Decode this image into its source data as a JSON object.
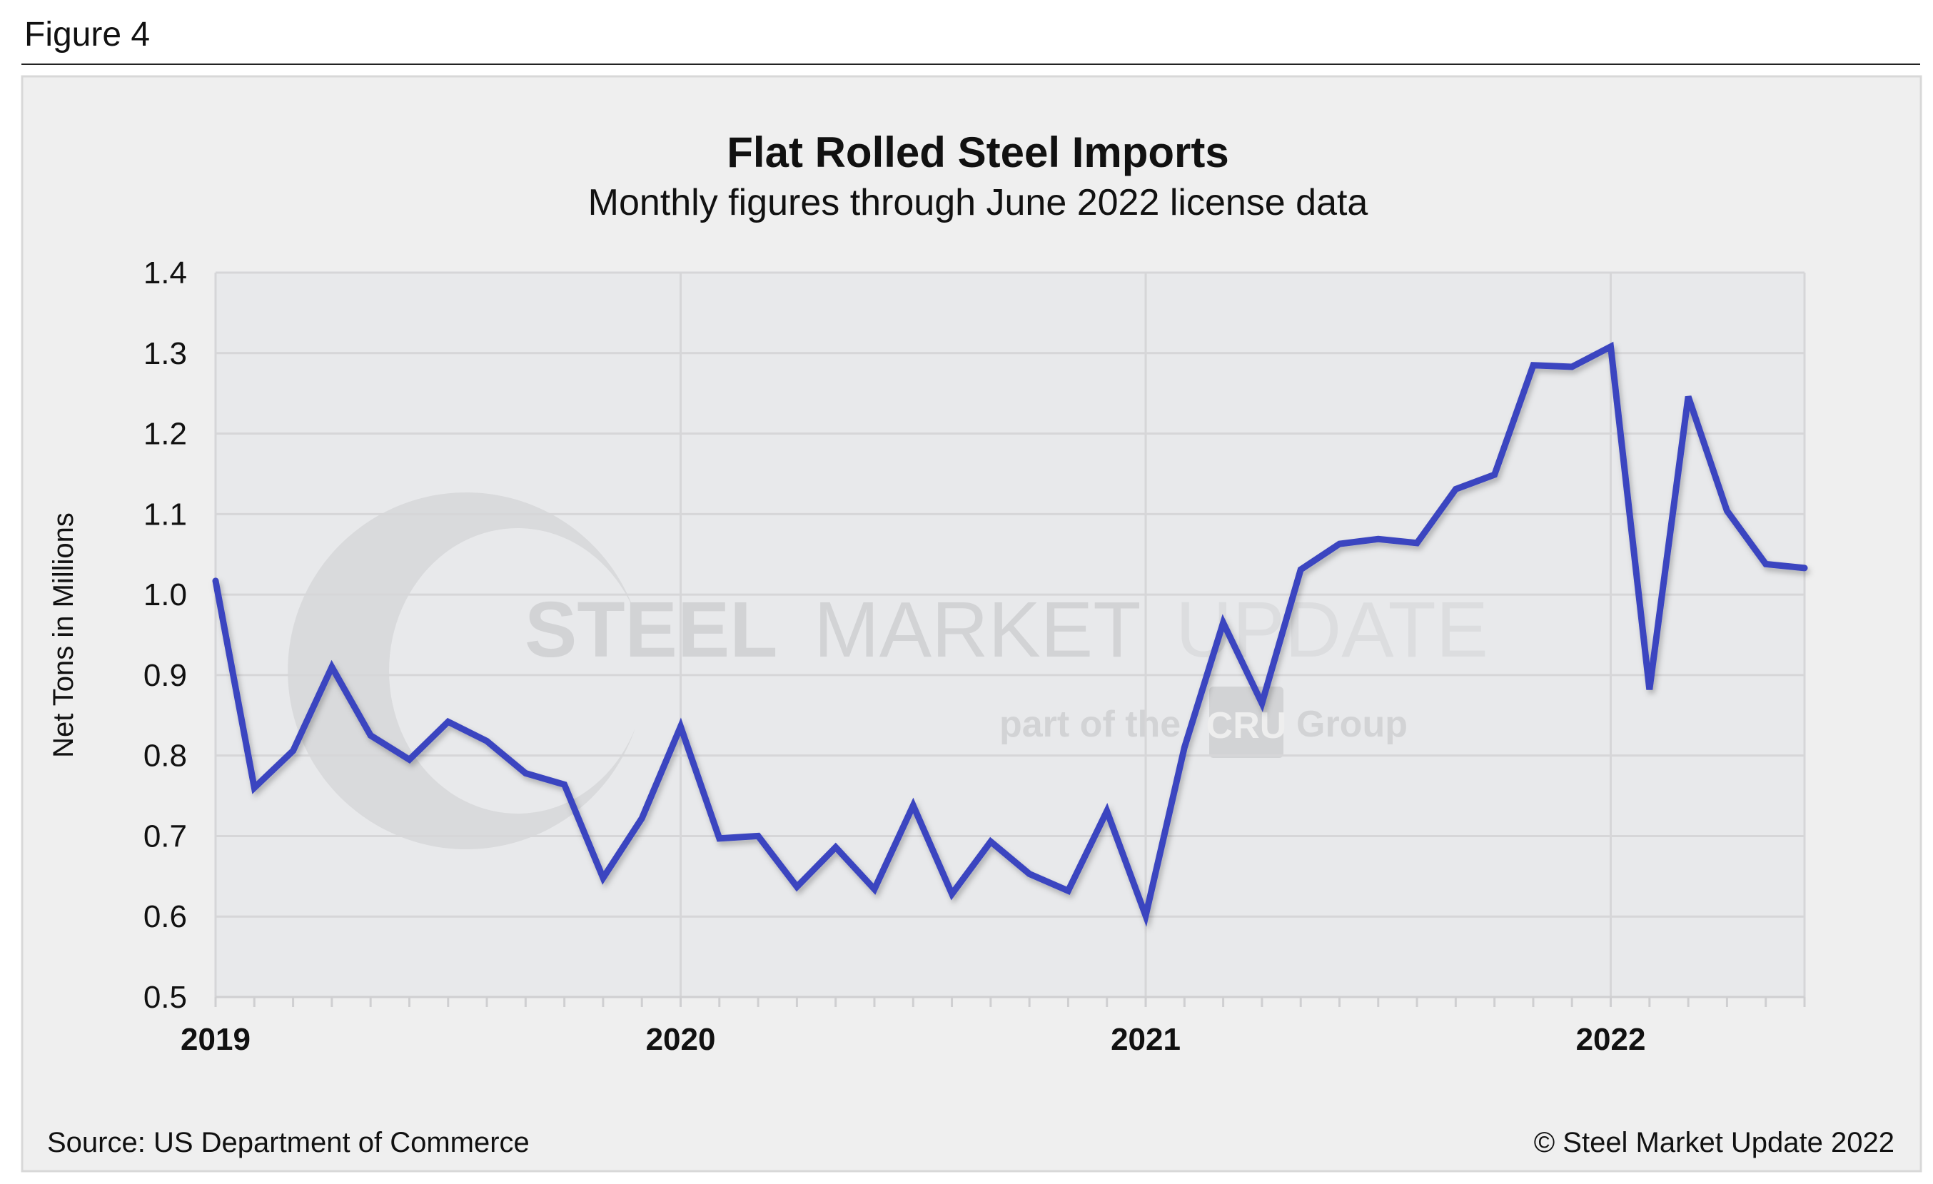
{
  "figure_label": "Figure 4",
  "source": "Source: US Department of Commerce",
  "copyright": "© Steel Market Update 2022",
  "watermark": {
    "main_bold": "STEEL",
    "main_regular": "MARKET",
    "main_light": "UPDATE",
    "sub_prefix": "part of the",
    "sub_badge": "CRU",
    "sub_suffix": "Group"
  },
  "colors": {
    "line": "#3b45c0",
    "plot_bg": "#e8e9eb",
    "panel_bg": "#efefef",
    "grid": "#d6d6d8"
  },
  "chart_data": {
    "type": "line",
    "title": "Flat Rolled Steel Imports",
    "subtitle": "Monthly figures through June 2022 license data",
    "xlabel": "",
    "ylabel": "Net Tons in Millions",
    "ylim": [
      0.5,
      1.4
    ],
    "yticks": [
      "0.5",
      "0.6",
      "0.7",
      "0.8",
      "0.9",
      "1.0",
      "1.1",
      "1.2",
      "1.3",
      "1.4"
    ],
    "xticks": [
      "2019",
      "2020",
      "2021",
      "2022"
    ],
    "grid": true,
    "x_start": "2019-01",
    "x_end": "2022-06",
    "series": [
      {
        "name": "Flat Rolled Steel Imports",
        "values": [
          1.017,
          0.76,
          0.806,
          0.91,
          0.825,
          0.795,
          0.842,
          0.818,
          0.778,
          0.764,
          0.648,
          0.722,
          0.836,
          0.697,
          0.7,
          0.637,
          0.686,
          0.634,
          0.738,
          0.628,
          0.693,
          0.653,
          0.632,
          0.731,
          0.601,
          0.81,
          0.965,
          0.865,
          1.031,
          1.063,
          1.069,
          1.064,
          1.131,
          1.149,
          1.285,
          1.283,
          1.308,
          0.882,
          1.246,
          1.104,
          1.038,
          1.033
        ]
      }
    ]
  }
}
